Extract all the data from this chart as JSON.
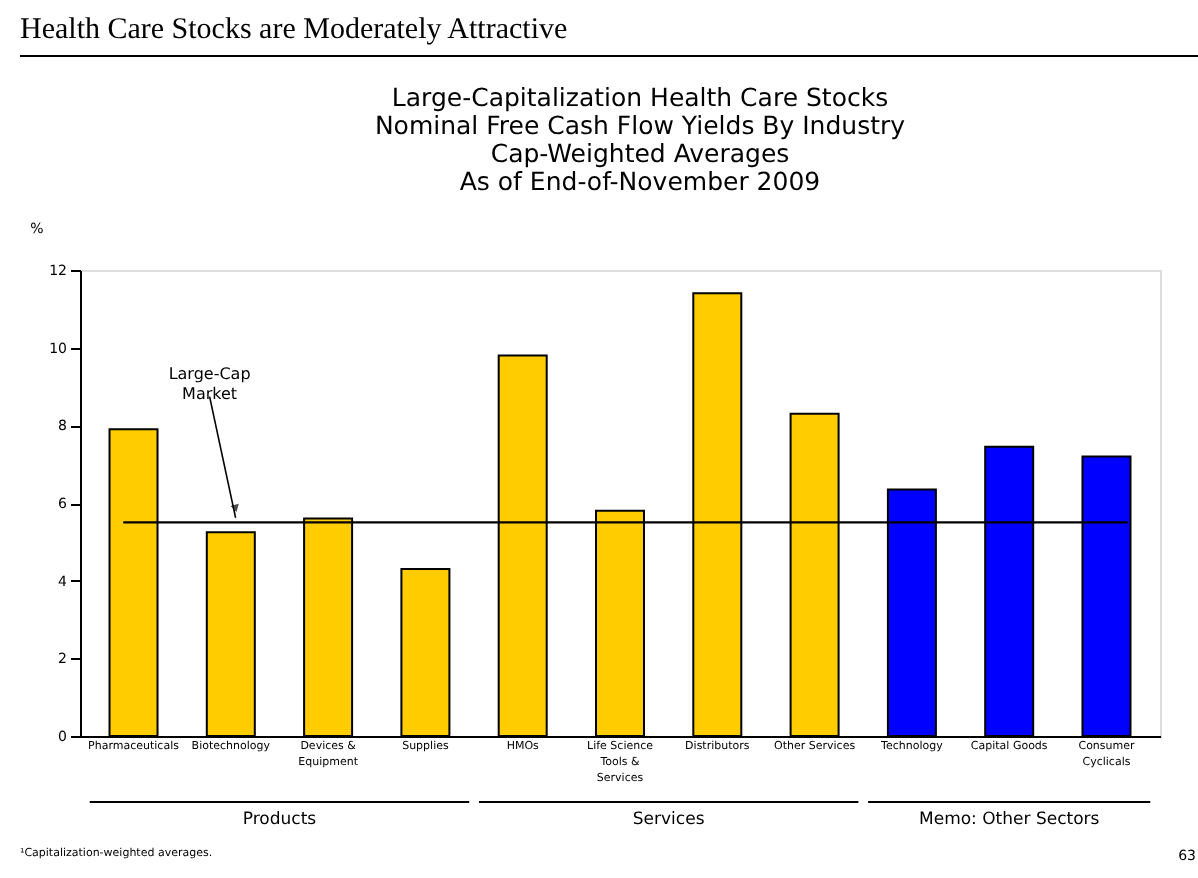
{
  "chart_data": {
    "type": "bar",
    "title": "Large-Capitalization Health Care Stocks\nNominal Free Cash Flow Yields By Industry\nCap-Weighted Averages\nAs of End-of-November 2009",
    "ylabel": "%",
    "categories": [
      "Pharmaceuticals",
      "Biotechnology",
      "Devices & Equipment",
      "Supplies",
      "HMOs",
      "Life Science Tools & Services",
      "Distributors",
      "Other Services",
      "Technology",
      "Capital Goods",
      "Consumer Cyclicals"
    ],
    "values": [
      7.9,
      5.25,
      5.6,
      4.3,
      9.8,
      5.8,
      11.4,
      8.3,
      6.35,
      7.45,
      7.2
    ],
    "colors": [
      "#ffcc00",
      "#ffcc00",
      "#ffcc00",
      "#ffcc00",
      "#ffcc00",
      "#ffcc00",
      "#ffcc00",
      "#ffcc00",
      "#0000ff",
      "#0000ff",
      "#0000ff"
    ],
    "ylim": [
      0,
      12
    ],
    "yticks": [
      0,
      2,
      4,
      6,
      8,
      10,
      12
    ],
    "ref_lines": [
      {
        "axis": "y",
        "value": 5.5,
        "label": "Large-Cap Market",
        "color": "#000000"
      }
    ],
    "annotations": [
      "Health Care Stocks are Moderately Attractive",
      "Products",
      "Services",
      "Memo: Other Sectors",
      "¹Capitalization-weighted averages.",
      "63"
    ],
    "grid": false
  }
}
